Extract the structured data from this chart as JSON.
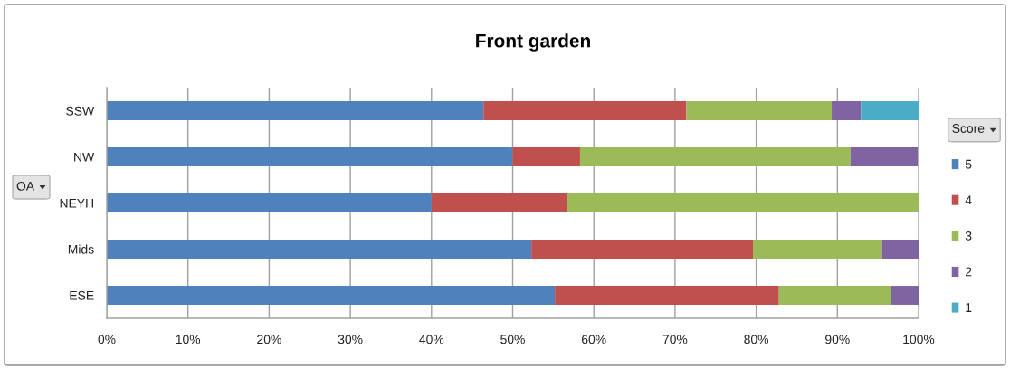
{
  "chart_data": {
    "type": "bar",
    "orientation": "horizontal",
    "stacked": true,
    "title": "Front garden",
    "ylabel": "OA",
    "legend_title": "Score",
    "categories": [
      "SSW",
      "NW",
      "NEYH",
      "Mids",
      "ESE"
    ],
    "series": [
      {
        "name": "5",
        "color": "#4f81bd",
        "values": [
          46.4,
          50.0,
          40.0,
          52.3,
          55.2
        ]
      },
      {
        "name": "4",
        "color": "#c0504d",
        "values": [
          25.0,
          8.3,
          16.7,
          27.3,
          27.6
        ]
      },
      {
        "name": "3",
        "color": "#9bbb59",
        "values": [
          17.9,
          33.3,
          43.3,
          15.9,
          13.8
        ]
      },
      {
        "name": "2",
        "color": "#8064a2",
        "values": [
          3.6,
          8.3,
          null,
          4.5,
          3.4
        ]
      },
      {
        "name": "1",
        "color": "#4bacc6",
        "values": [
          7.1,
          null,
          null,
          null,
          null
        ]
      }
    ],
    "xlim": [
      0,
      100
    ],
    "xticks": [
      {
        "value": 0,
        "label": "0%"
      },
      {
        "value": 10,
        "label": "10%"
      },
      {
        "value": 20,
        "label": "20%"
      },
      {
        "value": 30,
        "label": "30%"
      },
      {
        "value": 40,
        "label": "40%"
      },
      {
        "value": 50,
        "label": "50%"
      },
      {
        "value": 60,
        "label": "60%"
      },
      {
        "value": 70,
        "label": "70%"
      },
      {
        "value": 80,
        "label": "80%"
      },
      {
        "value": 90,
        "label": "90%"
      },
      {
        "value": 100,
        "label": "100%"
      }
    ],
    "grid": "x",
    "legend": "right"
  }
}
